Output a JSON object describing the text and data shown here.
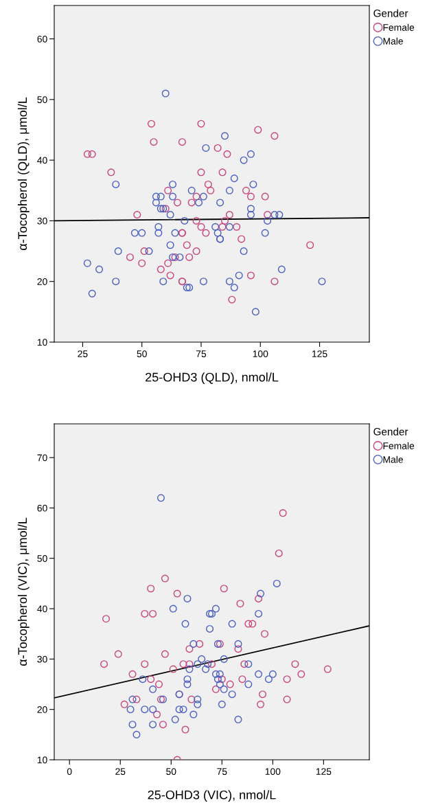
{
  "chart_data": [
    {
      "type": "scatter",
      "xlabel": "25-OHD3 (QLD), nmol/L",
      "ylabel": "α-Tocopherol (QLD), μmol/L",
      "legend_title": "Gender",
      "legend": "top right",
      "grid": false,
      "marker": "circle",
      "xlim": [
        13,
        146
      ],
      "ylim": [
        10,
        65.5
      ],
      "xticks": [
        25,
        50,
        75,
        100,
        125
      ],
      "yticks": [
        10,
        20,
        30,
        40,
        50,
        60
      ],
      "series": [
        {
          "name": "Female",
          "color": "#c8457c",
          "x": [
            27,
            29,
            37,
            45,
            48,
            50,
            51,
            54,
            55,
            58,
            60,
            61,
            61,
            62,
            64,
            65,
            67,
            67,
            67,
            67,
            67,
            69,
            70,
            71,
            73,
            73,
            73,
            75,
            75,
            75,
            77,
            78,
            79,
            82,
            84,
            85,
            84,
            86,
            87,
            88,
            90,
            92,
            94,
            96,
            96,
            99,
            102,
            103,
            106,
            106,
            121
          ],
          "values": [
            41,
            41,
            38,
            24,
            31,
            23,
            25,
            46,
            43,
            22,
            32,
            35,
            23,
            21,
            24,
            33,
            28,
            28,
            43,
            20,
            20,
            26,
            24,
            33,
            34,
            25,
            30,
            46,
            38,
            29,
            28,
            36,
            35,
            42,
            38,
            30,
            29,
            41,
            31,
            17,
            29,
            27,
            35,
            34,
            21,
            45,
            34,
            31,
            44,
            20,
            26
          ]
        },
        {
          "name": "Male",
          "color": "#4a5fc0",
          "x": [
            27,
            29,
            32,
            39,
            39,
            40,
            47,
            50,
            53,
            56,
            56,
            57,
            57,
            58,
            58,
            59,
            59,
            60,
            62,
            62,
            63,
            63,
            63,
            64,
            66,
            68,
            69,
            70,
            71,
            74,
            76,
            76,
            77,
            81,
            82,
            83,
            83,
            83,
            85,
            87,
            87,
            87,
            89,
            89,
            91,
            93,
            93,
            96,
            96,
            96,
            97,
            98,
            102,
            103,
            106,
            108,
            109,
            126
          ],
          "values": [
            23,
            18,
            22,
            36,
            20,
            25,
            28,
            28,
            25,
            34,
            33,
            29,
            28,
            34,
            32,
            32,
            20,
            51,
            31,
            26,
            36,
            34,
            24,
            28,
            24,
            30,
            19,
            19,
            35,
            33,
            34,
            20,
            42,
            29,
            28,
            33,
            27,
            27,
            44,
            35,
            29,
            20,
            37,
            19,
            21,
            40,
            25,
            41,
            32,
            31,
            36,
            15,
            28,
            30,
            31,
            31,
            22,
            20
          ]
        },
        {
          "type": "line",
          "marker": "none",
          "color": "#000000",
          "x": [
            13,
            146
          ],
          "values": [
            30.0,
            30.5
          ]
        }
      ]
    },
    {
      "type": "scatter",
      "xlabel": "25-OHD3 (VIC), nmol/L",
      "ylabel": "α-Tocopherol (VIC), μmol/L",
      "legend_title": "Gender",
      "legend": "top right",
      "grid": false,
      "marker": "circle",
      "xlim": [
        -7.5,
        147.5
      ],
      "ylim": [
        10,
        76.7
      ],
      "xticks": [
        0,
        25,
        50,
        75,
        100,
        125
      ],
      "yticks": [
        10,
        20,
        30,
        40,
        50,
        60,
        70
      ],
      "series": [
        {
          "name": "Female",
          "color": "#c8457c",
          "x": [
            18,
            17,
            24,
            27,
            31,
            33,
            37,
            37,
            41,
            40,
            40,
            44,
            43,
            45,
            46,
            47,
            47,
            51,
            53,
            54,
            53,
            56,
            57,
            59,
            59,
            60,
            64,
            70,
            72,
            74,
            76,
            84,
            93,
            105,
            103,
            88,
            90,
            96,
            83,
            86,
            111,
            127,
            114,
            107,
            85,
            75,
            79,
            95,
            94,
            107
          ],
          "values": [
            38,
            29,
            31,
            21,
            27,
            22,
            29,
            39,
            39,
            44,
            26,
            25,
            19,
            22,
            17,
            46,
            31,
            28,
            43,
            23,
            10,
            29,
            16,
            32,
            29,
            22,
            33,
            29,
            24,
            33,
            44,
            41,
            42,
            59,
            51,
            37,
            37,
            35,
            32,
            29,
            29,
            28,
            27,
            26,
            26,
            26,
            25,
            23,
            21,
            22
          ]
        },
        {
          "name": "Male",
          "color": "#4a5fc0",
          "x": [
            45,
            51,
            58,
            57,
            61,
            69,
            70,
            72,
            69,
            65,
            63,
            68,
            59,
            67,
            36,
            41,
            58,
            58,
            31,
            46,
            54,
            63,
            63,
            30,
            37,
            41,
            54,
            56,
            61,
            31,
            41,
            52,
            33,
            102,
            94,
            93,
            80,
            73,
            83,
            76,
            88,
            72,
            74,
            93,
            100,
            98,
            73,
            74,
            88,
            76,
            80,
            75,
            83
          ],
          "values": [
            62,
            40,
            42,
            37,
            33,
            39,
            39,
            40,
            36,
            30,
            29,
            29,
            28,
            28,
            26,
            24,
            26,
            25,
            22,
            22,
            23,
            22,
            21,
            20,
            20,
            20,
            20,
            20,
            19,
            17,
            17,
            18,
            15,
            45,
            43,
            39,
            37,
            33,
            33,
            30,
            29,
            27,
            27,
            27,
            27,
            26,
            26,
            25,
            25,
            24,
            23,
            21,
            18
          ]
        },
        {
          "type": "line",
          "marker": "none",
          "color": "#000000",
          "x": [
            -7.5,
            147.5
          ],
          "values": [
            22.3,
            36.6
          ]
        }
      ]
    }
  ]
}
